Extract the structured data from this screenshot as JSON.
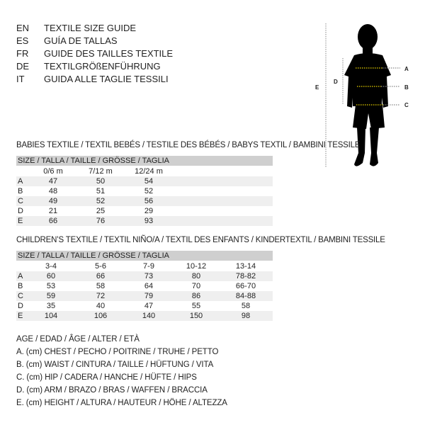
{
  "languages": [
    {
      "code": "EN",
      "title": "TEXTILE SIZE GUIDE"
    },
    {
      "code": "ES",
      "title": "GUÍA DE TALLAS"
    },
    {
      "code": "FR",
      "title": "GUIDE DES TAILLES TEXTILE"
    },
    {
      "code": "DE",
      "title": "TEXTILGRÖßENFÜHRUNG"
    },
    {
      "code": "IT",
      "title": "GUIDA ALLE TAGLIE TESSILI"
    }
  ],
  "figure": {
    "labels": {
      "a": "A",
      "b": "B",
      "c": "C",
      "d": "D",
      "e": "E"
    },
    "accent_color": "#e8d000"
  },
  "babies": {
    "heading": "BABIES TEXTILE / TEXTIL BEBÉS / TESTILE DES BÉBÉS / BABYS TEXTIL / BAMBINI TESSILE",
    "size_label": "SIZE / TALLA / TAILLE / GRÖSSE / TAGLIA",
    "columns": [
      "0/6 m",
      "7/12 m",
      "12/24 m"
    ],
    "rows": [
      {
        "label": "A",
        "values": [
          "47",
          "50",
          "54"
        ]
      },
      {
        "label": "B",
        "values": [
          "48",
          "51",
          "52"
        ]
      },
      {
        "label": "C",
        "values": [
          "49",
          "52",
          "56"
        ]
      },
      {
        "label": "D",
        "values": [
          "21",
          "25",
          "29"
        ]
      },
      {
        "label": "E",
        "values": [
          "66",
          "76",
          "93"
        ]
      }
    ]
  },
  "children": {
    "heading": "CHILDREN’S TEXTILE / TEXTIL NIÑO/A / TEXTIL DES ENFANTS / KINDERTEXTIL / BAMBINI TESSILE",
    "size_label": "SIZE / TALLA / TAILLE / GRÖSSE / TAGLIA",
    "columns": [
      "3-4",
      "5-6",
      "7-9",
      "10-12",
      "13-14"
    ],
    "rows": [
      {
        "label": "A",
        "values": [
          "60",
          "66",
          "73",
          "80",
          "78-82"
        ]
      },
      {
        "label": "B",
        "values": [
          "53",
          "58",
          "64",
          "70",
          "66-70"
        ]
      },
      {
        "label": "C",
        "values": [
          "59",
          "72",
          "79",
          "86",
          "84-88"
        ]
      },
      {
        "label": "D",
        "values": [
          "35",
          "40",
          "47",
          "55",
          "58"
        ]
      },
      {
        "label": "E",
        "values": [
          "104",
          "106",
          "140",
          "150",
          "98"
        ]
      }
    ]
  },
  "legend": [
    "AGE / EDAD / ÂGE / ALTER / ETÀ",
    "A. (cm) CHEST / PECHO / POITRINE / TRUHE / PETTO",
    "B. (cm) WAIST / CINTURA / TAILLE / HÜFTUNG / VITA",
    "C. (cm) HIP / CADERA / HANCHE / HÜFTE / HIPS",
    "D. (cm) ARM / BRAZO / BRAS / WAFFEN / BRACCIA",
    "E. (cm) HEIGHT / ALTURA / HAUTEUR / HÖHE / ALTEZZA"
  ]
}
